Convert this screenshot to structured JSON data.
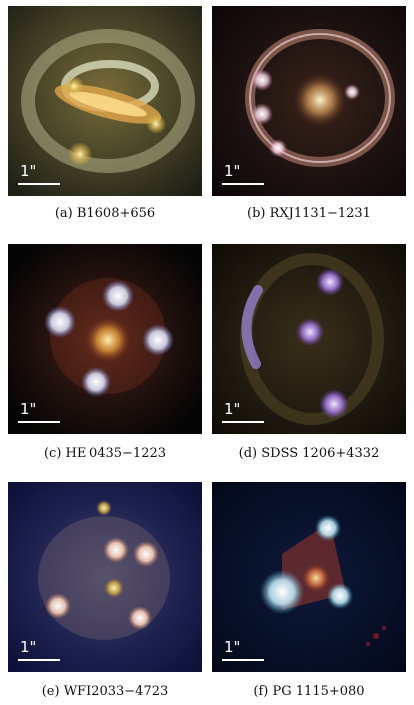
{
  "scale_bar_label": "1\"",
  "panels": [
    {
      "caption": "(a) B1608+656"
    },
    {
      "caption": "(b) RXJ1131−1231"
    },
    {
      "caption": "(c) HE 0435−1223"
    },
    {
      "caption": "(d) SDSS 1206+4332"
    },
    {
      "caption": "(e) WFI2033−4723"
    },
    {
      "caption": "(f) PG 1115+080"
    }
  ]
}
